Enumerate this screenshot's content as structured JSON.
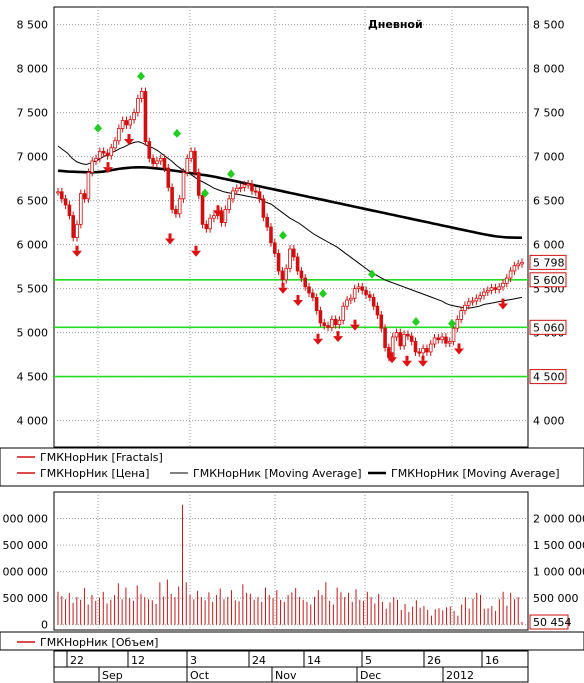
{
  "chart_title": "Дневной",
  "legend_main": [
    {
      "label": "ГМКНорНик [Fractals]",
      "color": "#d01010",
      "style": "arrow"
    },
    {
      "label": "ГМКНорНик [Цена]",
      "color": "#d01010",
      "style": "line"
    },
    {
      "label": "ГМКНорНик [Moving Average]",
      "color": "#000000",
      "style": "thin"
    },
    {
      "label": "ГМКНорНик [Moving Average]",
      "color": "#000000",
      "style": "thick"
    }
  ],
  "legend_volume": {
    "label": "ГМКНорНик [Объем]",
    "color": "#d01010"
  },
  "date_axis": {
    "days": [
      "22",
      "12",
      "3",
      "24",
      "14",
      "5",
      "26",
      "16"
    ],
    "months": [
      "Sep",
      "Oct",
      "Nov",
      "Dec",
      "2012"
    ]
  },
  "colors": {
    "candles": "#d01010",
    "fractal_up": "#22cc22",
    "fractal_down": "#dd1111",
    "levels": "#22dd22",
    "volume": "#c81818"
  },
  "chart_data": [
    {
      "type": "line",
      "title": "Дневной",
      "ylim": [
        3700,
        8700
      ],
      "yticks": [
        "8 500",
        "8 000",
        "7 500",
        "7 000",
        "6 500",
        "6 000",
        "5 500",
        "5 000",
        "4 500",
        "4 000"
      ],
      "ytick_values": [
        8500,
        8000,
        7500,
        7000,
        6500,
        6000,
        5500,
        5000,
        4500,
        4000
      ],
      "series": [
        {
          "name": "ГМКНорНик [Цена]",
          "style": "ohlc",
          "values": [
            6600,
            6520,
            6450,
            6330,
            6080,
            6230,
            6580,
            6520,
            6820,
            6950,
            6980,
            7060,
            7040,
            7010,
            7100,
            7180,
            7320,
            7410,
            7360,
            7420,
            7500,
            7660,
            7740,
            7170,
            6980,
            6920,
            6950,
            6980,
            6870,
            6650,
            6400,
            6350,
            6520,
            6820,
            6980,
            7060,
            6820,
            6560,
            6230,
            6180,
            6300,
            6330,
            6380,
            6250,
            6400,
            6520,
            6610,
            6640,
            6650,
            6680,
            6690,
            6610,
            6600,
            6520,
            6310,
            6200,
            6020,
            5900,
            5700,
            5600,
            5730,
            5950,
            5860,
            5700,
            5620,
            5520,
            5450,
            5400,
            5250,
            5110,
            5080,
            5060,
            5150,
            5090,
            5140,
            5300,
            5370,
            5390,
            5500,
            5520,
            5480,
            5430,
            5400,
            5300,
            5200,
            5050,
            4830,
            4720,
            4950,
            5000,
            4850,
            4980,
            4960,
            4900,
            4780,
            4770,
            4820,
            4780,
            4870,
            4940,
            4920,
            4950,
            4880,
            4900,
            5050,
            5150,
            5250,
            5310,
            5350,
            5360,
            5390,
            5420,
            5460,
            5480,
            5510,
            5490,
            5520,
            5560,
            5620,
            5700,
            5760,
            5780,
            5798
          ]
        },
        {
          "name": "ГМКНорНик [Moving Average]",
          "style": "thin",
          "values": [
            7120,
            7080,
            7040,
            6980,
            6940,
            6920,
            6910,
            6930,
            6950,
            6980,
            7010,
            7040,
            7060,
            7090,
            7110,
            7140,
            7160,
            7170,
            7150,
            7120,
            7100,
            7070,
            7030,
            6990,
            6950,
            6900,
            6860,
            6830,
            6800,
            6760,
            6730,
            6700,
            6670,
            6640,
            6620,
            6600,
            6590,
            6580,
            6570,
            6560,
            6550,
            6540,
            6530,
            6510,
            6480,
            6460,
            6420,
            6380,
            6340,
            6300,
            6270,
            6240,
            6200,
            6160,
            6120,
            6090,
            6060,
            6030,
            6000,
            5970,
            5930,
            5890,
            5850,
            5810,
            5770,
            5730,
            5690,
            5660,
            5630,
            5600,
            5580,
            5560,
            5540,
            5520,
            5500,
            5480,
            5460,
            5440,
            5420,
            5400,
            5380,
            5360,
            5330,
            5310,
            5300,
            5290,
            5280,
            5280,
            5290,
            5300,
            5320,
            5330,
            5340,
            5350,
            5360,
            5370,
            5380,
            5390,
            5400
          ]
        },
        {
          "name": "ГМКНорНик [Moving Average]",
          "style": "thick",
          "values": [
            6840,
            6835,
            6830,
            6828,
            6826,
            6824,
            6822,
            6822,
            6824,
            6828,
            6836,
            6848,
            6858,
            6866,
            6872,
            6876,
            6878,
            6878,
            6876,
            6872,
            6866,
            6860,
            6852,
            6844,
            6836,
            6828,
            6820,
            6812,
            6804,
            6796,
            6788,
            6778,
            6768,
            6756,
            6744,
            6732,
            6720,
            6708,
            6696,
            6684,
            6672,
            6660,
            6648,
            6636,
            6624,
            6612,
            6600,
            6588,
            6576,
            6564,
            6552,
            6540,
            6528,
            6516,
            6504,
            6492,
            6480,
            6468,
            6456,
            6444,
            6432,
            6420,
            6408,
            6396,
            6384,
            6372,
            6360,
            6348,
            6336,
            6324,
            6312,
            6300,
            6288,
            6276,
            6264,
            6252,
            6240,
            6228,
            6216,
            6204,
            6192,
            6180,
            6168,
            6156,
            6144,
            6132,
            6120,
            6110,
            6100,
            6092,
            6086,
            6082,
            6080,
            6078,
            6078
          ]
        }
      ],
      "fractals_up": [
        7320,
        7910,
        7260,
        6580,
        6800,
        6100,
        5440,
        5660,
        5120,
        5100
      ],
      "fractals_down": [
        5930,
        6880,
        7200,
        6070,
        5930,
        6390,
        5510,
        5370,
        4930,
        4960,
        5090,
        4720,
        4680,
        4680,
        4820,
        5330
      ],
      "levels": [
        5600,
        5060,
        4500
      ],
      "value_tags": [
        "5 798",
        "5 600",
        "5 060",
        "4 500"
      ]
    },
    {
      "type": "bar",
      "title": "",
      "ylim": [
        -100000,
        2500000
      ],
      "yticks": [
        "2 000 000",
        "1 500 000",
        "1 000 000",
        "500 000",
        "0"
      ],
      "ytick_values": [
        2000000,
        1500000,
        1000000,
        500000,
        0
      ],
      "series": [
        {
          "name": "ГМКНорНик [Объем]",
          "values": [
            620000,
            540000,
            480000,
            600000,
            410000,
            520000,
            470000,
            690000,
            380000,
            560000,
            450000,
            510000,
            620000,
            400000,
            470000,
            560000,
            780000,
            480000,
            700000,
            500000,
            450000,
            740000,
            580000,
            520000,
            480000,
            460000,
            390000,
            800000,
            530000,
            850000,
            580000,
            520000,
            720000,
            2260000,
            800000,
            560000,
            480000,
            640000,
            520000,
            460000,
            610000,
            430000,
            560000,
            680000,
            480000,
            520000,
            650000,
            460000,
            440000,
            760000,
            600000,
            580000,
            470000,
            520000,
            430000,
            700000,
            560000,
            500000,
            650000,
            470000,
            430000,
            560000,
            610000,
            690000,
            520000,
            470000,
            430000,
            380000,
            520000,
            650000,
            560000,
            800000,
            450000,
            380000,
            700000,
            610000,
            520000,
            600000,
            430000,
            670000,
            470000,
            450000,
            620000,
            520000,
            400000,
            580000,
            430000,
            300000,
            420000,
            520000,
            470000,
            280000,
            390000,
            240000,
            340000,
            460000,
            320000,
            350000,
            280000,
            170000,
            290000,
            310000,
            270000,
            330000,
            340000,
            260000,
            170000,
            380000,
            520000,
            300000,
            490000,
            600000,
            560000,
            300000,
            310000,
            350000,
            260000,
            480000,
            620000,
            360000,
            600000,
            480000,
            520000,
            50454
          ]
        }
      ],
      "value_tags": [
        "50 454"
      ]
    }
  ]
}
